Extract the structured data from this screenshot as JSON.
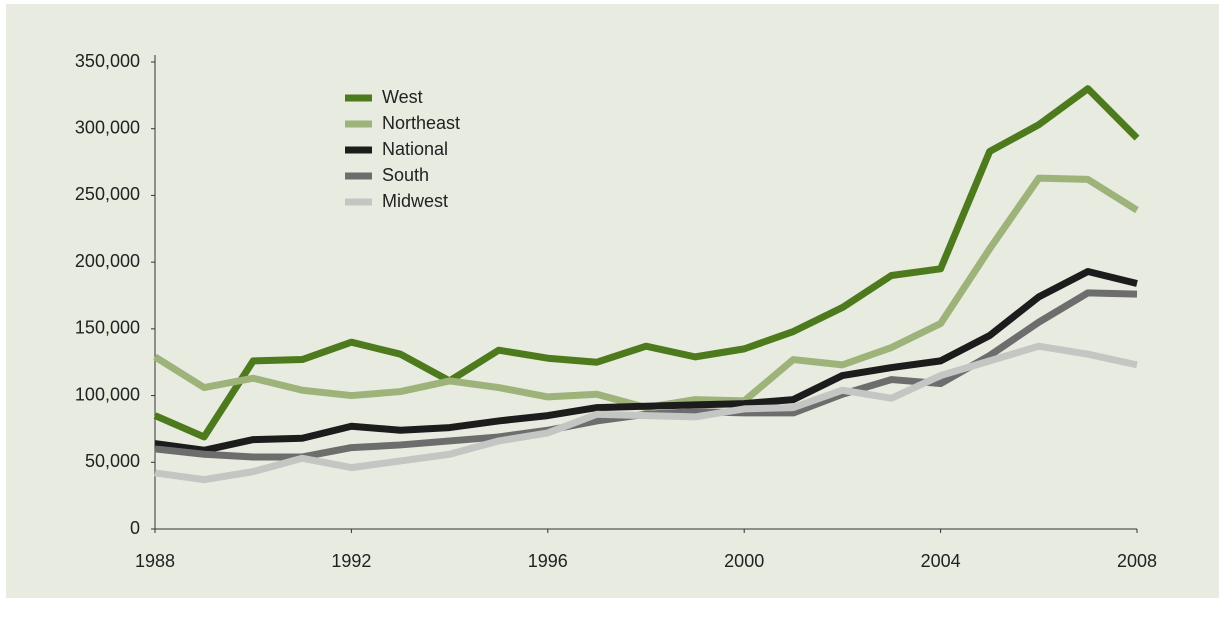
{
  "chart_data": {
    "type": "line",
    "x": [
      1988,
      1989,
      1990,
      1991,
      1992,
      1993,
      1994,
      1995,
      1996,
      1997,
      1998,
      1999,
      2000,
      2001,
      2002,
      2003,
      2004,
      2005,
      2006,
      2007,
      2008
    ],
    "series": [
      {
        "name": "West",
        "color": "#4e7a1e",
        "values": [
          85000,
          69000,
          126000,
          127000,
          140000,
          131000,
          111000,
          134000,
          128000,
          125000,
          137000,
          129000,
          135000,
          148000,
          166000,
          190000,
          195000,
          283000,
          303000,
          330000,
          293000
        ]
      },
      {
        "name": "Northeast",
        "color": "#9db37a",
        "values": [
          129000,
          106000,
          113000,
          104000,
          100000,
          103000,
          111000,
          106000,
          99000,
          101000,
          91000,
          97000,
          96000,
          127000,
          123000,
          136000,
          154000,
          210000,
          263000,
          262000,
          239000
        ]
      },
      {
        "name": "National",
        "color": "#1c1c1c",
        "values": [
          64000,
          59000,
          67000,
          68000,
          77000,
          74000,
          76000,
          81000,
          85000,
          91000,
          92000,
          93000,
          94000,
          97000,
          115000,
          121000,
          126000,
          145000,
          174000,
          193000,
          184000
        ]
      },
      {
        "name": "South",
        "color": "#6d6d6d",
        "values": [
          60000,
          56000,
          54000,
          54000,
          61000,
          63000,
          66000,
          69000,
          74000,
          81000,
          86000,
          88000,
          87000,
          87000,
          101000,
          112000,
          109000,
          130000,
          155000,
          177000,
          176000
        ]
      },
      {
        "name": "Midwest",
        "color": "#c4c6c4",
        "values": [
          42000,
          37000,
          43000,
          53000,
          46000,
          51000,
          56000,
          66000,
          72000,
          86000,
          85000,
          84000,
          90000,
          91000,
          104000,
          98000,
          115000,
          126000,
          137000,
          131000,
          123000
        ]
      }
    ],
    "xlim": [
      1988,
      2008
    ],
    "xticks": [
      1988,
      1992,
      1996,
      2000,
      2004,
      2008
    ],
    "ylim": [
      0,
      350000
    ],
    "yticks": [
      0,
      {
        "value": 50000,
        "label": "50,000"
      },
      {
        "value": 100000,
        "label": "100,000"
      },
      {
        "value": 150000,
        "label": "150,000"
      },
      {
        "value": 200000,
        "label": "200,000"
      },
      {
        "value": 250000,
        "label": "250,000"
      },
      {
        "value": 300000,
        "label": "300,000"
      },
      {
        "value": 350000,
        "label": "350,000"
      }
    ],
    "legend": "upper-left"
  }
}
